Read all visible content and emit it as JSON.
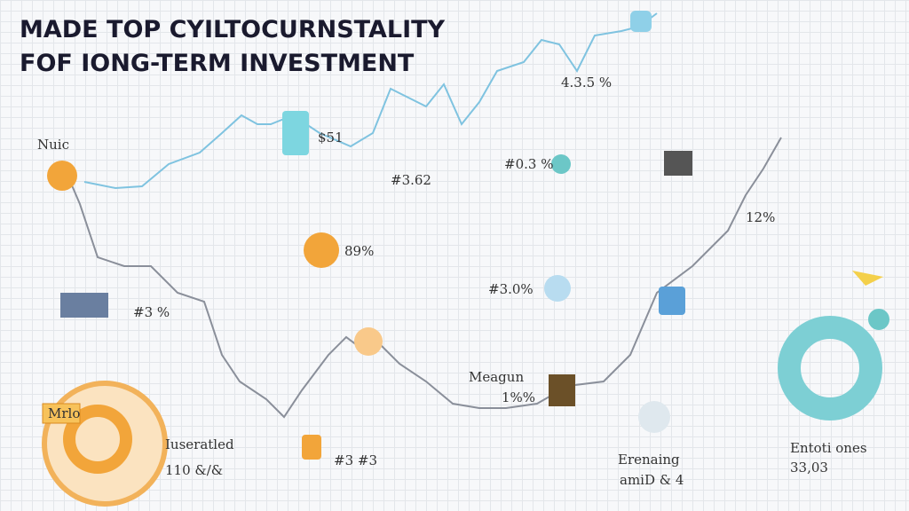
{
  "header": {
    "title_lines": [
      "MADE TOP CYILTOCURNSTALITY",
      "FOF IONG-TERM INVESTMENT"
    ]
  },
  "labels": [
    {
      "text": "4.3.5 %"
    },
    {
      "text": "Nuic"
    },
    {
      "text": "$51"
    },
    {
      "text": "#3.62"
    },
    {
      "text": "#0.3 %"
    },
    {
      "text": "12%"
    },
    {
      "text": "89%"
    },
    {
      "text": "#3 %"
    },
    {
      "text": "#3.0%"
    },
    {
      "text": "Meagun"
    },
    {
      "text": "1%%"
    },
    {
      "text": "Iuseratled"
    },
    {
      "text": "110 &/&"
    },
    {
      "text": "#3 #3"
    },
    {
      "text": "Erenaing"
    },
    {
      "text": "amiD & 4"
    },
    {
      "text": "Entoti ones"
    },
    {
      "text": "33,03"
    },
    {
      "text": "Mrlo"
    }
  ]
}
